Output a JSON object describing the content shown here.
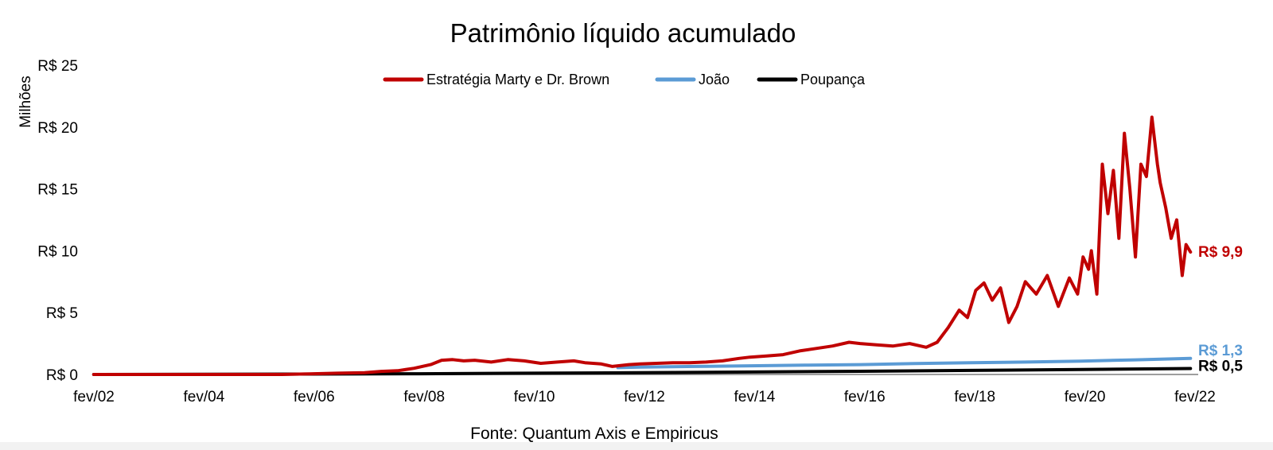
{
  "chart_data": {
    "type": "line",
    "title": "Patrimônio líquido acumulado",
    "ylabel": "Milhões",
    "xlabel": "",
    "source": "Fonte: Quantum Axis e Empiricus",
    "ylim": [
      0,
      25
    ],
    "yticks": [
      {
        "value": 0,
        "label": "R$ 0"
      },
      {
        "value": 5,
        "label": "R$ 5"
      },
      {
        "value": 10,
        "label": "R$ 10"
      },
      {
        "value": 15,
        "label": "R$ 15"
      },
      {
        "value": 20,
        "label": "R$ 20"
      },
      {
        "value": 25,
        "label": "R$ 25"
      }
    ],
    "xlim": [
      2002.083,
      2022.083
    ],
    "xticks": [
      {
        "value": 2002.083,
        "label": "fev/02"
      },
      {
        "value": 2004.083,
        "label": "fev/04"
      },
      {
        "value": 2006.083,
        "label": "fev/06"
      },
      {
        "value": 2008.083,
        "label": "fev/08"
      },
      {
        "value": 2010.083,
        "label": "fev/10"
      },
      {
        "value": 2012.083,
        "label": "fev/12"
      },
      {
        "value": 2014.083,
        "label": "fev/14"
      },
      {
        "value": 2016.083,
        "label": "fev/16"
      },
      {
        "value": 2018.083,
        "label": "fev/18"
      },
      {
        "value": 2020.083,
        "label": "fev/20"
      },
      {
        "value": 2022.083,
        "label": "fev/22"
      }
    ],
    "grid": false,
    "legend": "top-center",
    "series": [
      {
        "name": "Estratégia Marty e Dr. Brown",
        "color": "#c00000",
        "end_label": "R$ 9,9",
        "x": [
          2002.08,
          2005.5,
          2006.0,
          2006.5,
          2007.0,
          2007.3,
          2007.6,
          2007.9,
          2008.2,
          2008.4,
          2008.6,
          2008.8,
          2009.0,
          2009.3,
          2009.6,
          2009.9,
          2010.2,
          2010.5,
          2010.8,
          2011.0,
          2011.3,
          2011.5,
          2011.8,
          2012.0,
          2012.3,
          2012.6,
          2012.9,
          2013.2,
          2013.5,
          2013.8,
          2014.0,
          2014.3,
          2014.6,
          2014.9,
          2015.2,
          2015.5,
          2015.8,
          2016.0,
          2016.3,
          2016.6,
          2016.9,
          2017.2,
          2017.4,
          2017.6,
          2017.8,
          2017.95,
          2018.1,
          2018.25,
          2018.4,
          2018.55,
          2018.7,
          2018.85,
          2019.0,
          2019.2,
          2019.4,
          2019.6,
          2019.8,
          2019.95,
          2020.05,
          2020.15,
          2020.2,
          2020.3,
          2020.4,
          2020.5,
          2020.6,
          2020.7,
          2020.8,
          2020.9,
          2021.0,
          2021.1,
          2021.2,
          2021.3,
          2021.4,
          2021.45,
          2021.55,
          2021.65,
          2021.75,
          2021.85,
          2021.92,
          2022.0
        ],
        "y": [
          0.0,
          0.0,
          0.05,
          0.1,
          0.15,
          0.25,
          0.3,
          0.5,
          0.8,
          1.15,
          1.2,
          1.1,
          1.15,
          1.0,
          1.2,
          1.1,
          0.9,
          1.0,
          1.1,
          0.95,
          0.85,
          0.65,
          0.8,
          0.85,
          0.9,
          0.95,
          0.95,
          1.0,
          1.1,
          1.3,
          1.4,
          1.5,
          1.6,
          1.9,
          2.1,
          2.3,
          2.6,
          2.5,
          2.4,
          2.3,
          2.5,
          2.2,
          2.6,
          3.8,
          5.2,
          4.6,
          6.8,
          7.4,
          6.0,
          7.0,
          4.2,
          5.5,
          7.5,
          6.5,
          8.0,
          5.5,
          7.8,
          6.5,
          9.5,
          8.5,
          10.0,
          6.5,
          17.0,
          13.0,
          16.5,
          11.0,
          19.5,
          15.0,
          9.5,
          17.0,
          16.0,
          20.8,
          17.0,
          15.5,
          13.5,
          11.0,
          12.5,
          8.0,
          10.5,
          9.9
        ]
      },
      {
        "name": "João",
        "color": "#5b9bd5",
        "end_label": "R$ 1,3",
        "x": [
          2011.6,
          2012.0,
          2013.0,
          2014.0,
          2015.0,
          2016.0,
          2017.0,
          2018.0,
          2019.0,
          2020.0,
          2021.0,
          2022.0
        ],
        "y": [
          0.55,
          0.6,
          0.65,
          0.7,
          0.75,
          0.8,
          0.88,
          0.95,
          1.0,
          1.08,
          1.18,
          1.3
        ]
      },
      {
        "name": "Poupança",
        "color": "#000000",
        "end_label": "R$ 0,5",
        "x": [
          2002.08,
          2004.0,
          2006.0,
          2008.0,
          2010.0,
          2012.0,
          2014.0,
          2016.0,
          2018.0,
          2020.0,
          2022.0
        ],
        "y": [
          0.0,
          0.01,
          0.03,
          0.06,
          0.1,
          0.14,
          0.2,
          0.26,
          0.33,
          0.4,
          0.48
        ]
      }
    ]
  }
}
